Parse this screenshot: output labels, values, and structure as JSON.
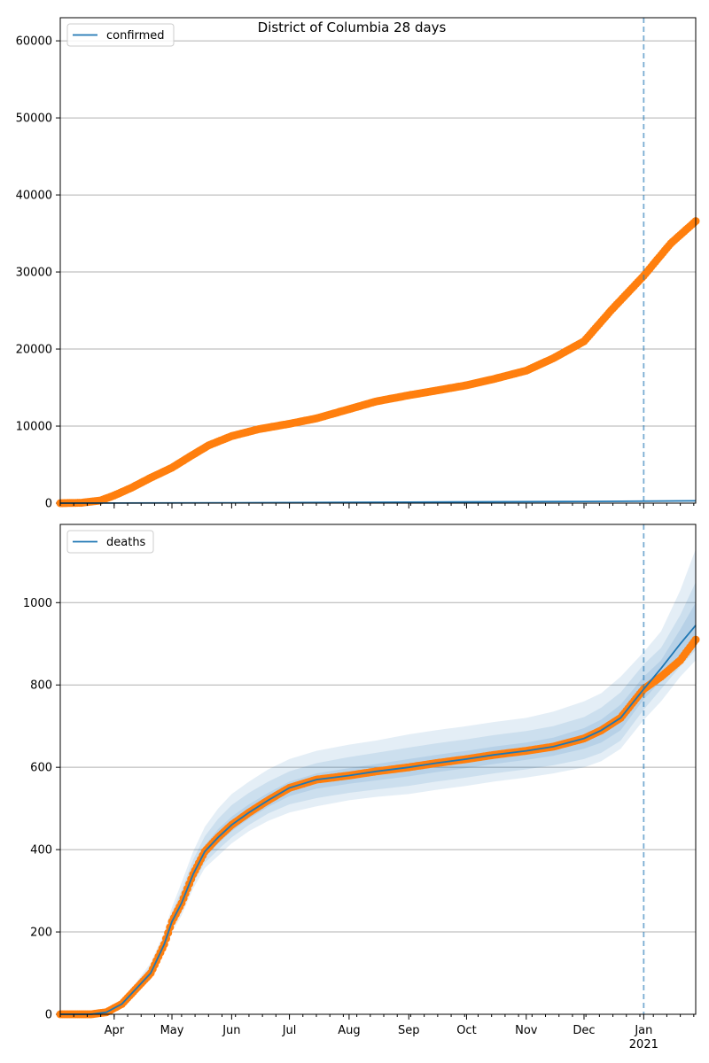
{
  "figure": {
    "title": "District of Columbia 28 days"
  },
  "colors": {
    "observed": "#ff7f0e",
    "model": "#1f77b4",
    "band": "#1f77b4",
    "grid": "#b0b0b0",
    "axis": "#000000"
  },
  "x_axis": {
    "month_ticks": [
      {
        "date": "2020-04-01",
        "label": "Apr"
      },
      {
        "date": "2020-05-01",
        "label": "May"
      },
      {
        "date": "2020-06-01",
        "label": "Jun"
      },
      {
        "date": "2020-07-01",
        "label": "Jul"
      },
      {
        "date": "2020-08-01",
        "label": "Aug"
      },
      {
        "date": "2020-09-01",
        "label": "Sep"
      },
      {
        "date": "2020-10-01",
        "label": "Oct"
      },
      {
        "date": "2020-11-01",
        "label": "Nov"
      },
      {
        "date": "2020-12-01",
        "label": "Dec"
      },
      {
        "date": "2021-01-01",
        "label": "Jan"
      }
    ],
    "year_label": "2021",
    "forecast_start": "2021-01-01",
    "range": [
      "2020-03-04",
      "2021-01-28"
    ]
  },
  "chart_data": [
    {
      "type": "line",
      "legend": "confirmed",
      "legend_position": "upper-left",
      "ylim": [
        0,
        63000
      ],
      "yticks": [
        0,
        10000,
        20000,
        30000,
        40000,
        50000,
        60000
      ],
      "grid": "horizontal",
      "observed": {
        "x": [
          "2020-03-04",
          "2020-03-15",
          "2020-03-25",
          "2020-04-01",
          "2020-04-10",
          "2020-04-20",
          "2020-05-01",
          "2020-05-10",
          "2020-05-20",
          "2020-06-01",
          "2020-06-15",
          "2020-07-01",
          "2020-07-15",
          "2020-08-01",
          "2020-08-15",
          "2020-09-01",
          "2020-09-15",
          "2020-10-01",
          "2020-10-15",
          "2020-11-01",
          "2020-11-15",
          "2020-12-01",
          "2020-12-15",
          "2021-01-01",
          "2021-01-15",
          "2021-01-28"
        ],
        "values": [
          0,
          50,
          350,
          1000,
          2000,
          3300,
          4600,
          6000,
          7500,
          8700,
          9600,
          10300,
          11000,
          12200,
          13200,
          14000,
          14600,
          15300,
          16100,
          17200,
          18800,
          21000,
          25000,
          29500,
          33700,
          36600
        ]
      },
      "model": {
        "x": [
          "2020-03-04",
          "2020-06-01",
          "2020-09-01",
          "2020-12-01",
          "2021-01-28"
        ],
        "values": [
          0,
          50,
          130,
          220,
          300
        ]
      }
    },
    {
      "type": "line",
      "legend": "deaths",
      "legend_position": "upper-left",
      "ylim": [
        0,
        1190
      ],
      "yticks": [
        0,
        200,
        400,
        600,
        800,
        1000
      ],
      "grid": "horizontal",
      "observed": {
        "x": [
          "2020-03-04",
          "2020-03-20",
          "2020-03-28",
          "2020-04-05",
          "2020-04-12",
          "2020-04-20",
          "2020-04-27",
          "2020-05-01",
          "2020-05-06",
          "2020-05-12",
          "2020-05-18",
          "2020-05-25",
          "2020-06-01",
          "2020-06-10",
          "2020-06-20",
          "2020-07-01",
          "2020-07-15",
          "2020-08-01",
          "2020-08-15",
          "2020-09-01",
          "2020-09-15",
          "2020-10-01",
          "2020-10-15",
          "2020-11-01",
          "2020-11-15",
          "2020-12-01",
          "2020-12-10",
          "2020-12-20",
          "2021-01-01",
          "2021-01-10",
          "2021-01-20",
          "2021-01-28"
        ],
        "values": [
          0,
          0,
          5,
          25,
          60,
          100,
          170,
          225,
          270,
          340,
          395,
          430,
          460,
          490,
          520,
          550,
          570,
          580,
          590,
          600,
          610,
          620,
          630,
          640,
          650,
          670,
          690,
          720,
          790,
          820,
          860,
          910
        ]
      },
      "model": {
        "x": [
          "2020-03-04",
          "2020-03-20",
          "2020-03-28",
          "2020-04-05",
          "2020-04-12",
          "2020-04-20",
          "2020-04-27",
          "2020-05-01",
          "2020-05-06",
          "2020-05-12",
          "2020-05-18",
          "2020-05-25",
          "2020-06-01",
          "2020-06-10",
          "2020-06-20",
          "2020-07-01",
          "2020-07-15",
          "2020-08-01",
          "2020-08-15",
          "2020-09-01",
          "2020-09-15",
          "2020-10-01",
          "2020-10-15",
          "2020-11-01",
          "2020-11-15",
          "2020-12-01",
          "2020-12-10",
          "2020-12-20",
          "2021-01-01",
          "2021-01-10",
          "2021-01-20",
          "2021-01-28"
        ],
        "values": [
          0,
          0,
          5,
          25,
          60,
          100,
          170,
          225,
          270,
          340,
          395,
          430,
          460,
          490,
          520,
          550,
          570,
          580,
          590,
          600,
          610,
          620,
          630,
          640,
          650,
          670,
          690,
          720,
          790,
          840,
          900,
          945
        ]
      },
      "bands": [
        {
          "lower": [
            0,
            0,
            3,
            18,
            48,
            85,
            150,
            200,
            240,
            305,
            355,
            385,
            415,
            445,
            470,
            490,
            505,
            520,
            528,
            535,
            545,
            555,
            565,
            575,
            585,
            600,
            615,
            645,
            715,
            760,
            820,
            860
          ],
          "upper": [
            0,
            0,
            8,
            35,
            75,
            125,
            200,
            260,
            320,
            395,
            455,
            500,
            535,
            565,
            595,
            620,
            640,
            655,
            665,
            680,
            690,
            700,
            710,
            720,
            735,
            760,
            780,
            820,
            880,
            930,
            1030,
            1130
          ]
        },
        {
          "lower": [
            0,
            0,
            4,
            20,
            52,
            90,
            158,
            208,
            250,
            318,
            368,
            400,
            430,
            460,
            488,
            510,
            525,
            538,
            546,
            555,
            565,
            575,
            585,
            595,
            605,
            620,
            635,
            665,
            740,
            790,
            845,
            885
          ],
          "upper": [
            0,
            0,
            7,
            31,
            70,
            118,
            190,
            248,
            302,
            375,
            432,
            475,
            508,
            538,
            565,
            590,
            610,
            625,
            635,
            648,
            658,
            668,
            678,
            688,
            700,
            722,
            745,
            782,
            850,
            890,
            970,
            1050
          ]
        },
        {
          "lower": [
            0,
            0,
            4,
            22,
            56,
            95,
            164,
            216,
            260,
            328,
            380,
            415,
            445,
            475,
            504,
            530,
            548,
            560,
            568,
            578,
            588,
            598,
            608,
            618,
            628,
            645,
            660,
            690,
            765,
            810,
            860,
            895
          ],
          "upper": [
            0,
            0,
            6,
            28,
            65,
            110,
            180,
            236,
            285,
            355,
            410,
            450,
            480,
            510,
            538,
            565,
            585,
            598,
            608,
            620,
            630,
            640,
            650,
            660,
            672,
            695,
            716,
            752,
            820,
            860,
            935,
            1000
          ]
        }
      ]
    }
  ]
}
